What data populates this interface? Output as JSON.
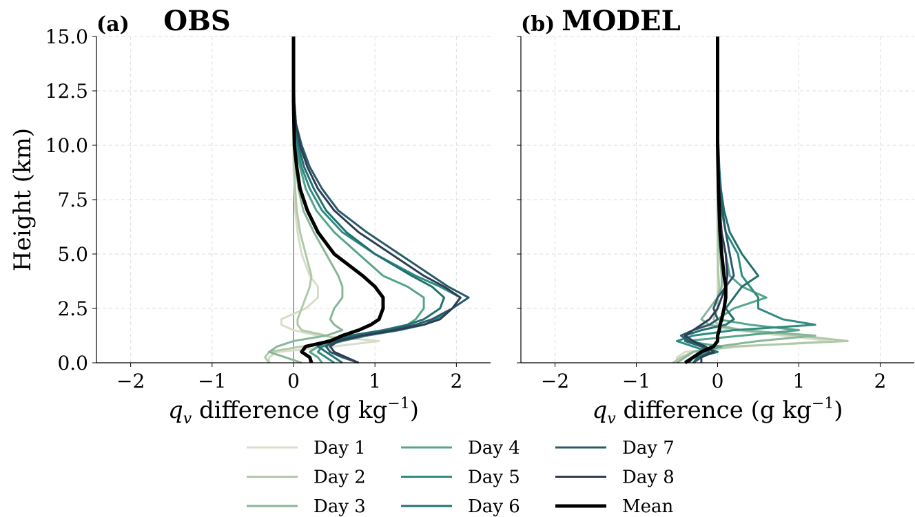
{
  "chart_data": [
    {
      "type": "line",
      "panel_label": "(a)",
      "title": "OBS",
      "ylabel": "Height (km)",
      "xlabel": {
        "symbol": "q",
        "subscript": "v",
        "text": " difference (g kg",
        "superscript": "−1",
        "close": ")"
      },
      "xlim": [
        -2.42,
        2.42
      ],
      "ylim": [
        0,
        15
      ],
      "xticks": [
        {
          "value": -2,
          "label": "−2"
        },
        {
          "value": -1,
          "label": "−1"
        },
        0,
        1,
        2
      ],
      "yticks": [
        {
          "value": 0,
          "label": "0.0"
        },
        2.5,
        {
          "value": 5,
          "label": "5.0"
        },
        7.5,
        {
          "value": 10,
          "label": "10.0"
        },
        12.5,
        {
          "value": 15,
          "label": "15.0"
        }
      ],
      "grid": true,
      "zero_line": true,
      "legend": "lower center",
      "y": [
        0,
        0.25,
        0.5,
        0.75,
        1.0,
        1.25,
        1.5,
        1.75,
        2.0,
        2.5,
        3.0,
        3.5,
        4.0,
        5.0,
        6.0,
        7.0,
        8.0,
        9.0,
        10.0,
        11.0,
        12.0,
        15.0
      ],
      "series": [
        {
          "name": "Day 1",
          "color": "#d8dcc8",
          "values": [
            -0.3,
            -0.3,
            -0.2,
            0.5,
            1.05,
            0.3,
            0.0,
            -0.15,
            -0.15,
            0.15,
            0.3,
            0.3,
            0.2,
            0.1,
            0.05,
            0.02,
            0.01,
            0,
            0,
            0,
            0,
            0
          ]
        },
        {
          "name": "Day 2",
          "color": "#b0c9a8",
          "values": [
            -0.3,
            -0.35,
            -0.3,
            0.1,
            0.6,
            0.4,
            0.1,
            0.05,
            0.05,
            0.1,
            0.15,
            0.2,
            0.22,
            0.15,
            0.08,
            0.04,
            0.02,
            0.01,
            0,
            0,
            0,
            0
          ]
        },
        {
          "name": "Day 3",
          "color": "#88b69a",
          "values": [
            0.1,
            -0.1,
            -0.3,
            -0.2,
            0.0,
            0.4,
            0.6,
            0.5,
            0.45,
            0.5,
            0.6,
            0.6,
            0.55,
            0.4,
            0.25,
            0.12,
            0.06,
            0.03,
            0.01,
            0,
            0,
            0
          ]
        },
        {
          "name": "Day 4",
          "color": "#55a48c",
          "values": [
            0.35,
            0.3,
            0.2,
            0.3,
            0.5,
            0.8,
            1.2,
            1.4,
            1.5,
            1.6,
            1.6,
            1.4,
            1.1,
            0.8,
            0.5,
            0.28,
            0.15,
            0.08,
            0.03,
            0.01,
            0,
            0
          ]
        },
        {
          "name": "Day 5",
          "color": "#2e8b82",
          "values": [
            0.5,
            0.4,
            0.3,
            0.35,
            0.6,
            0.9,
            1.3,
            1.6,
            1.75,
            1.95,
            2.05,
            1.8,
            1.5,
            1.0,
            0.6,
            0.35,
            0.2,
            0.1,
            0.04,
            0.015,
            0,
            0
          ]
        },
        {
          "name": "Day 6",
          "color": "#237070",
          "values": [
            0.6,
            0.5,
            0.4,
            0.3,
            0.4,
            0.7,
            1.1,
            1.4,
            1.6,
            1.8,
            1.85,
            1.7,
            1.45,
            1.0,
            0.65,
            0.4,
            0.25,
            0.13,
            0.06,
            0.02,
            0,
            0
          ]
        },
        {
          "name": "Day 7",
          "color": "#2a5a68",
          "values": [
            0.8,
            0.6,
            0.45,
            0.4,
            0.5,
            0.8,
            1.2,
            1.5,
            1.7,
            1.95,
            2.15,
            1.9,
            1.7,
            1.3,
            0.9,
            0.55,
            0.35,
            0.2,
            0.1,
            0.03,
            0.01,
            0
          ]
        },
        {
          "name": "Day 8",
          "color": "#2e3d55",
          "values": [
            0.8,
            0.65,
            0.5,
            0.45,
            0.55,
            0.85,
            1.25,
            1.6,
            1.8,
            1.95,
            2.05,
            1.85,
            1.6,
            1.2,
            0.8,
            0.5,
            0.3,
            0.17,
            0.08,
            0.03,
            0.01,
            0
          ]
        },
        {
          "name": "Mean",
          "color": "#000000",
          "values": [
            0.22,
            0.2,
            0.1,
            0.15,
            0.45,
            0.6,
            0.8,
            0.95,
            1.05,
            1.1,
            1.1,
            1.0,
            0.85,
            0.5,
            0.3,
            0.17,
            0.08,
            0.04,
            0.01,
            0.005,
            0,
            0
          ]
        }
      ]
    },
    {
      "type": "line",
      "panel_label": "(b)",
      "title": "MODEL",
      "xlabel": {
        "symbol": "q",
        "subscript": "v",
        "text": " difference (g kg",
        "superscript": "−1",
        "close": ")"
      },
      "xlim": [
        -2.42,
        2.42
      ],
      "ylim": [
        0,
        15
      ],
      "xticks": [
        {
          "value": -2,
          "label": "−2"
        },
        {
          "value": -1,
          "label": "−1"
        },
        0,
        1,
        2
      ],
      "grid": true,
      "zero_line": false,
      "y": [
        0,
        0.25,
        0.5,
        0.75,
        1.0,
        1.25,
        1.5,
        1.75,
        2.0,
        2.5,
        3.0,
        3.5,
        4.0,
        5.0,
        6.0,
        7.0,
        8.0,
        9.0,
        10.0,
        11.0,
        12.0,
        15.0
      ],
      "series": [
        {
          "values": [
            -0.5,
            -0.5,
            -0.4,
            0.3,
            1.4,
            0.8,
            0.2,
            -0.2,
            -0.1,
            0,
            0,
            0,
            0,
            0,
            0,
            0,
            0,
            0,
            0,
            0,
            0,
            0
          ]
        },
        {
          "values": [
            -0.55,
            -0.45,
            -0.3,
            0.2,
            1.6,
            1.0,
            0.3,
            0,
            -0.05,
            0,
            0,
            0.02,
            0.01,
            0,
            0,
            0,
            0,
            0,
            0,
            0,
            0,
            0
          ]
        },
        {
          "values": [
            -0.5,
            -0.4,
            -0.3,
            0,
            0.5,
            1.2,
            0.3,
            -0.1,
            -0.2,
            -0.1,
            0,
            0.05,
            0.05,
            0.03,
            0.01,
            0,
            0,
            0,
            0,
            0,
            0,
            0
          ]
        },
        {
          "values": [
            -0.4,
            -0.3,
            -0.2,
            0.05,
            -0.4,
            0.3,
            1.0,
            0.4,
            0.0,
            0.2,
            0.6,
            0.3,
            0.15,
            0.1,
            0.05,
            0.02,
            0.01,
            0,
            0,
            0,
            0,
            0
          ]
        },
        {
          "values": [
            -0.35,
            -0.3,
            -0.1,
            -0.3,
            -0.5,
            -0.3,
            0.2,
            1.2,
            0.8,
            0.5,
            0.5,
            0.4,
            0.3,
            0.25,
            0.1,
            0.05,
            0.02,
            0.01,
            0,
            0,
            0,
            0
          ]
        },
        {
          "values": [
            -0.3,
            -0.25,
            0.0,
            -0.2,
            -0.4,
            -0.4,
            -0.2,
            0.1,
            0.2,
            0.1,
            0.2,
            0.3,
            0.5,
            0.3,
            0.15,
            0.08,
            0.04,
            0.02,
            0.01,
            0,
            0,
            0
          ]
        },
        {
          "values": [
            -0.3,
            -0.2,
            -0.1,
            -0.2,
            -0.35,
            -0.45,
            -0.3,
            -0.1,
            0.0,
            -0.05,
            0.0,
            0.1,
            0.2,
            0.15,
            0.1,
            0.06,
            0.03,
            0.01,
            0,
            0,
            0,
            0
          ]
        },
        {
          "values": [
            -0.2,
            -0.2,
            -0.05,
            -0.15,
            -0.3,
            -0.4,
            -0.3,
            -0.2,
            -0.1,
            0.0,
            0.05,
            0.1,
            0.12,
            0.1,
            0.05,
            0.03,
            0.02,
            0,
            0,
            0,
            0,
            0
          ]
        },
        {
          "values": [
            -0.4,
            -0.3,
            -0.2,
            -0.05,
            0.0,
            0.0,
            0.02,
            0.03,
            0.05,
            0.08,
            0.1,
            0.1,
            0.08,
            0.05,
            0.03,
            0.02,
            0.01,
            0.005,
            0,
            0,
            0,
            0
          ]
        }
      ]
    }
  ]
}
